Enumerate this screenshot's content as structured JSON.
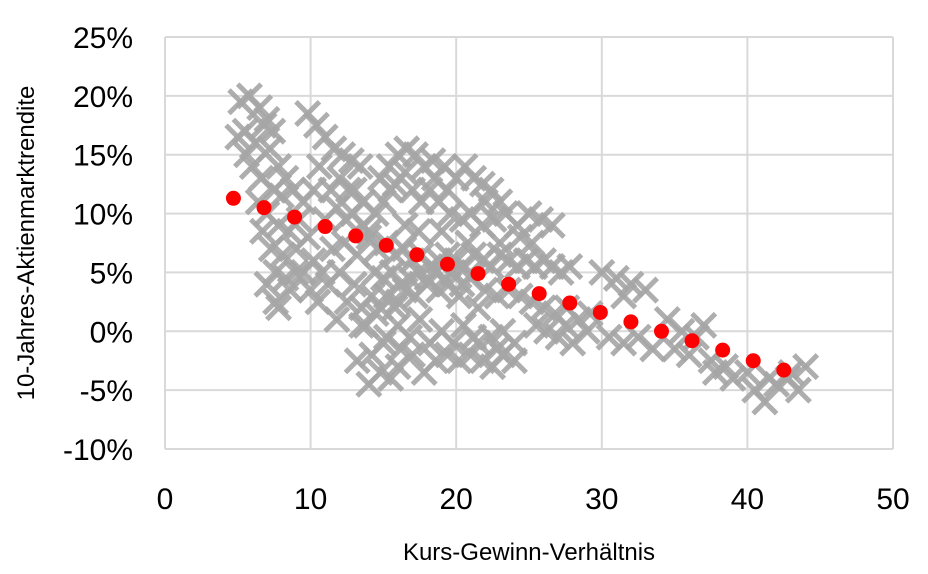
{
  "chart_data": {
    "type": "scatter",
    "xlabel": "Kurs-Gewinn-Verhältnis",
    "ylabel": "10-Jahres-Aktienmarktrendite",
    "xlim": [
      0,
      50
    ],
    "ylim": [
      -0.1,
      0.25
    ],
    "x_ticks": [
      {
        "value": 0,
        "label": "0"
      },
      {
        "value": 10,
        "label": "10"
      },
      {
        "value": 20,
        "label": "20"
      },
      {
        "value": 30,
        "label": "30"
      },
      {
        "value": 40,
        "label": "40"
      },
      {
        "value": 50,
        "label": "50"
      }
    ],
    "y_ticks": [
      {
        "value": 0.25,
        "label": "25%"
      },
      {
        "value": 0.2,
        "label": "20%"
      },
      {
        "value": 0.15,
        "label": "15%"
      },
      {
        "value": 0.1,
        "label": "10%"
      },
      {
        "value": 0.05,
        "label": "5%"
      },
      {
        "value": 0.0,
        "label": "0%"
      },
      {
        "value": -0.05,
        "label": "-5%"
      },
      {
        "value": -0.1,
        "label": "-10%"
      }
    ],
    "grid": true,
    "legend": "none",
    "colors": {
      "scatter": "#a6a6a6",
      "trend": "#ff0000",
      "grid": "#d9d9d9"
    },
    "series": [
      {
        "marker": "x",
        "color": "#a6a6a6",
        "points": [
          [
            5.2,
            0.195
          ],
          [
            5.8,
            0.2
          ],
          [
            6.5,
            0.19
          ],
          [
            7.0,
            0.18
          ],
          [
            5.5,
            0.17
          ],
          [
            6.2,
            0.16
          ],
          [
            5.0,
            0.165
          ],
          [
            6.8,
            0.175
          ],
          [
            7.4,
            0.17
          ],
          [
            5.6,
            0.15
          ],
          [
            6.0,
            0.14
          ],
          [
            7.2,
            0.155
          ],
          [
            6.6,
            0.13
          ],
          [
            7.8,
            0.14
          ],
          [
            8.3,
            0.13
          ],
          [
            7.5,
            0.12
          ],
          [
            8.0,
            0.115
          ],
          [
            8.8,
            0.12
          ],
          [
            9.5,
            0.11
          ],
          [
            6.4,
            0.11
          ],
          [
            7.0,
            0.1
          ],
          [
            7.8,
            0.09
          ],
          [
            8.5,
            0.085
          ],
          [
            9.2,
            0.095
          ],
          [
            6.7,
            0.085
          ],
          [
            7.3,
            0.07
          ],
          [
            8.1,
            0.065
          ],
          [
            9.0,
            0.07
          ],
          [
            7.6,
            0.05
          ],
          [
            8.3,
            0.045
          ],
          [
            7.0,
            0.04
          ],
          [
            7.6,
            0.025
          ],
          [
            7.8,
            0.02
          ],
          [
            9.8,
            0.08
          ],
          [
            10.2,
            0.06
          ],
          [
            10.8,
            0.05
          ],
          [
            9.5,
            0.05
          ],
          [
            10.0,
            0.035
          ],
          [
            11.2,
            0.04
          ],
          [
            10.5,
            0.025
          ],
          [
            9.8,
            0.185
          ],
          [
            10.4,
            0.175
          ],
          [
            11.0,
            0.165
          ],
          [
            11.6,
            0.155
          ],
          [
            12.2,
            0.15
          ],
          [
            12.8,
            0.145
          ],
          [
            13.4,
            0.14
          ],
          [
            12.0,
            0.13
          ],
          [
            11.4,
            0.12
          ],
          [
            12.6,
            0.12
          ],
          [
            10.6,
            0.14
          ],
          [
            11.8,
            0.105
          ],
          [
            12.9,
            0.1
          ],
          [
            13.6,
            0.09
          ],
          [
            14.0,
            0.085
          ],
          [
            10.2,
            0.12
          ],
          [
            11.0,
            0.095
          ],
          [
            12.3,
            0.075
          ],
          [
            13.2,
            0.065
          ],
          [
            11.5,
            0.07
          ],
          [
            12.0,
            0.05
          ],
          [
            13.0,
            0.04
          ],
          [
            12.5,
            0.025
          ],
          [
            11.8,
            0.01
          ],
          [
            13.5,
            0.02
          ],
          [
            14.2,
            0.03
          ],
          [
            13.8,
            0.005
          ],
          [
            14.5,
            0.015
          ],
          [
            15.2,
            0.03
          ],
          [
            15.8,
            0.02
          ],
          [
            16.5,
            0.035
          ],
          [
            17.2,
            0.03
          ],
          [
            18.0,
            0.04
          ],
          [
            18.8,
            0.035
          ],
          [
            19.5,
            0.04
          ],
          [
            20.2,
            0.03
          ],
          [
            21.0,
            0.045
          ],
          [
            16.0,
            0.005
          ],
          [
            16.8,
            -0.005
          ],
          [
            17.5,
            0.01
          ],
          [
            18.2,
            -0.01
          ],
          [
            19.0,
            0.0
          ],
          [
            19.8,
            -0.01
          ],
          [
            20.5,
            0.005
          ],
          [
            21.2,
            -0.005
          ],
          [
            15.0,
            -0.01
          ],
          [
            14.2,
            -0.02
          ],
          [
            13.2,
            -0.025
          ],
          [
            14.8,
            -0.035
          ],
          [
            15.5,
            -0.04
          ],
          [
            16.0,
            -0.03
          ],
          [
            17.0,
            -0.02
          ],
          [
            17.8,
            -0.035
          ],
          [
            18.6,
            -0.025
          ],
          [
            19.4,
            -0.02
          ],
          [
            20.2,
            -0.025
          ],
          [
            21.0,
            -0.02
          ],
          [
            21.8,
            -0.025
          ],
          [
            22.5,
            -0.03
          ],
          [
            23.2,
            -0.02
          ],
          [
            24.0,
            -0.025
          ],
          [
            16.2,
            -0.015
          ],
          [
            14.0,
            -0.045
          ],
          [
            15.2,
            -0.005
          ],
          [
            13.5,
            0.005
          ],
          [
            21.5,
            -0.01
          ],
          [
            22.4,
            -0.005
          ],
          [
            23.2,
            0.0
          ],
          [
            24.0,
            -0.01
          ],
          [
            22.8,
            -0.015
          ],
          [
            14.5,
            0.1
          ],
          [
            15.0,
            0.11
          ],
          [
            15.5,
            0.12
          ],
          [
            14.8,
            0.13
          ],
          [
            15.4,
            0.14
          ],
          [
            16.0,
            0.15
          ],
          [
            16.6,
            0.155
          ],
          [
            17.2,
            0.15
          ],
          [
            17.8,
            0.14
          ],
          [
            18.4,
            0.145
          ],
          [
            15.8,
            0.125
          ],
          [
            16.5,
            0.135
          ],
          [
            17.0,
            0.12
          ],
          [
            17.6,
            0.11
          ],
          [
            18.2,
            0.12
          ],
          [
            18.8,
            0.11
          ],
          [
            19.4,
            0.12
          ],
          [
            20.0,
            0.13
          ],
          [
            20.6,
            0.14
          ],
          [
            21.2,
            0.13
          ],
          [
            21.8,
            0.125
          ],
          [
            22.4,
            0.12
          ],
          [
            23.0,
            0.11
          ],
          [
            19.6,
            0.1
          ],
          [
            20.4,
            0.095
          ],
          [
            21.0,
            0.1
          ],
          [
            21.8,
            0.09
          ],
          [
            22.6,
            0.095
          ],
          [
            23.4,
            0.1
          ],
          [
            24.2,
            0.09
          ],
          [
            25.0,
            0.1
          ],
          [
            25.8,
            0.095
          ],
          [
            26.6,
            0.09
          ],
          [
            24.4,
            0.08
          ],
          [
            25.2,
            0.075
          ],
          [
            14.0,
            0.08
          ],
          [
            14.6,
            0.07
          ],
          [
            15.2,
            0.075
          ],
          [
            15.8,
            0.065
          ],
          [
            16.4,
            0.07
          ],
          [
            17.0,
            0.06
          ],
          [
            17.6,
            0.065
          ],
          [
            18.2,
            0.055
          ],
          [
            18.8,
            0.06
          ],
          [
            19.4,
            0.065
          ],
          [
            20.0,
            0.06
          ],
          [
            20.6,
            0.055
          ],
          [
            21.2,
            0.065
          ],
          [
            21.8,
            0.06
          ],
          [
            22.4,
            0.055
          ],
          [
            23.0,
            0.065
          ],
          [
            23.6,
            0.06
          ],
          [
            24.2,
            0.055
          ],
          [
            24.8,
            0.06
          ],
          [
            25.4,
            0.055
          ],
          [
            26.0,
            0.06
          ],
          [
            26.6,
            0.055
          ],
          [
            27.2,
            0.05
          ],
          [
            27.8,
            0.055
          ],
          [
            14.4,
            0.05
          ],
          [
            15.0,
            0.045
          ],
          [
            15.6,
            0.05
          ],
          [
            16.2,
            0.04
          ],
          [
            16.8,
            0.045
          ],
          [
            17.4,
            0.05
          ],
          [
            18.0,
            0.045
          ],
          [
            18.6,
            0.05
          ],
          [
            19.2,
            0.045
          ],
          [
            19.8,
            0.05
          ],
          [
            20.4,
            0.04
          ],
          [
            22.0,
            0.035
          ],
          [
            22.8,
            0.03
          ],
          [
            23.6,
            0.035
          ],
          [
            24.4,
            0.03
          ],
          [
            25.2,
            0.025
          ],
          [
            26.0,
            0.02
          ],
          [
            26.8,
            0.015
          ],
          [
            27.6,
            0.02
          ],
          [
            28.4,
            0.01
          ],
          [
            29.2,
            0.015
          ],
          [
            30.0,
            0.05
          ],
          [
            31.0,
            0.045
          ],
          [
            32.0,
            0.04
          ],
          [
            33.0,
            0.035
          ],
          [
            31.5,
            0.03
          ],
          [
            29.0,
            0.0
          ],
          [
            30.5,
            -0.005
          ],
          [
            31.5,
            -0.01
          ],
          [
            32.5,
            -0.005
          ],
          [
            33.5,
            -0.015
          ],
          [
            34.5,
            0.01
          ],
          [
            35.5,
            0.0
          ],
          [
            36.5,
            -0.005
          ],
          [
            37.0,
            0.005
          ],
          [
            35.0,
            -0.015
          ],
          [
            36.0,
            -0.02
          ],
          [
            37.5,
            -0.025
          ],
          [
            38.5,
            -0.03
          ],
          [
            37.8,
            -0.035
          ],
          [
            39.0,
            -0.04
          ],
          [
            40.0,
            -0.035
          ],
          [
            40.5,
            -0.05
          ],
          [
            41.2,
            -0.06
          ],
          [
            42.0,
            -0.045
          ],
          [
            42.8,
            -0.04
          ],
          [
            43.5,
            -0.05
          ],
          [
            44.0,
            -0.03
          ],
          [
            43.0,
            -0.035
          ],
          [
            41.5,
            -0.04
          ],
          [
            26.2,
            0.0
          ],
          [
            27.0,
            -0.005
          ],
          [
            28.0,
            -0.01
          ],
          [
            27.5,
            0.005
          ],
          [
            25.5,
            0.005
          ],
          [
            13.0,
            0.12
          ],
          [
            13.6,
            0.11
          ],
          [
            12.4,
            0.095
          ],
          [
            18.5,
            0.13
          ],
          [
            19.2,
            0.14
          ],
          [
            22.0,
            0.11
          ],
          [
            9.0,
            0.05
          ],
          [
            8.6,
            0.035
          ],
          [
            16.5,
            0.09
          ],
          [
            17.4,
            0.085
          ],
          [
            19.0,
            0.085
          ],
          [
            20.8,
            0.075
          ],
          [
            23.0,
            0.075
          ],
          [
            14.8,
            0.02
          ],
          [
            16.0,
            0.025
          ],
          [
            21.5,
            0.02
          ]
        ]
      },
      {
        "marker": "dot",
        "color": "#ff0000",
        "points": [
          [
            4.7,
            0.113
          ],
          [
            6.8,
            0.105
          ],
          [
            8.9,
            0.097
          ],
          [
            11.0,
            0.089
          ],
          [
            13.1,
            0.081
          ],
          [
            15.2,
            0.073
          ],
          [
            17.3,
            0.065
          ],
          [
            19.4,
            0.057
          ],
          [
            21.5,
            0.049
          ],
          [
            23.6,
            0.04
          ],
          [
            25.7,
            0.032
          ],
          [
            27.8,
            0.024
          ],
          [
            29.9,
            0.016
          ],
          [
            32.0,
            0.008
          ],
          [
            34.1,
            0.0
          ],
          [
            36.2,
            -0.008
          ],
          [
            38.3,
            -0.016
          ],
          [
            40.4,
            -0.025
          ],
          [
            42.5,
            -0.033
          ]
        ]
      }
    ]
  }
}
